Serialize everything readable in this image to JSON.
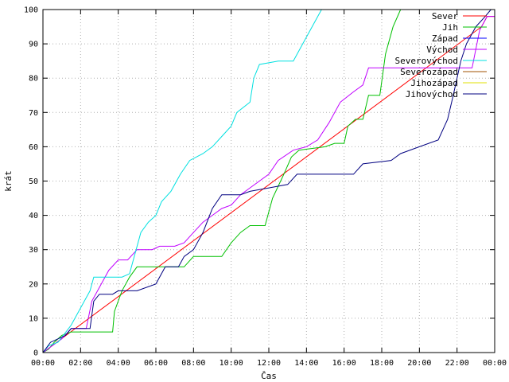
{
  "chart_data": {
    "type": "line",
    "xlabel": "Čas",
    "ylabel": "krát",
    "ylim": [
      0,
      100
    ],
    "xlim": [
      0,
      24
    ],
    "yticks": [
      0,
      10,
      20,
      30,
      40,
      50,
      60,
      70,
      80,
      90,
      100
    ],
    "xticks": [
      {
        "value": 0,
        "label": "00:00"
      },
      {
        "value": 2,
        "label": "02:00"
      },
      {
        "value": 4,
        "label": "04:00"
      },
      {
        "value": 6,
        "label": "06:00"
      },
      {
        "value": 8,
        "label": "08:00"
      },
      {
        "value": 10,
        "label": "10:00"
      },
      {
        "value": 12,
        "label": "12:00"
      },
      {
        "value": 14,
        "label": "14:00"
      },
      {
        "value": 16,
        "label": "16:00"
      },
      {
        "value": 18,
        "label": "18:00"
      },
      {
        "value": 20,
        "label": "20:00"
      },
      {
        "value": 22,
        "label": "22:00"
      },
      {
        "value": 24,
        "label": "00:00"
      }
    ],
    "grid": true,
    "legend_position": "top-right",
    "series": [
      {
        "name": "Sever",
        "color": "#ff0000",
        "points": [
          [
            0,
            0
          ],
          [
            23.3,
            95
          ],
          [
            23.6,
            98
          ],
          [
            24,
            98
          ]
        ]
      },
      {
        "name": "Jih",
        "color": "#00c000",
        "points": [
          [
            0,
            0
          ],
          [
            0.3,
            1
          ],
          [
            0.6,
            3
          ],
          [
            1.0,
            5
          ],
          [
            1.5,
            6
          ],
          [
            2.5,
            6
          ],
          [
            3.7,
            6
          ],
          [
            3.8,
            12
          ],
          [
            4.2,
            18
          ],
          [
            4.6,
            22
          ],
          [
            5.0,
            25
          ],
          [
            6.5,
            25
          ],
          [
            7.5,
            25
          ],
          [
            8.0,
            28
          ],
          [
            9.5,
            28
          ],
          [
            10.0,
            32
          ],
          [
            10.5,
            35
          ],
          [
            11.0,
            37
          ],
          [
            11.8,
            37
          ],
          [
            12.2,
            45
          ],
          [
            12.8,
            52
          ],
          [
            13.2,
            57
          ],
          [
            13.6,
            59
          ],
          [
            15.0,
            60
          ],
          [
            15.5,
            61
          ],
          [
            16.0,
            61
          ],
          [
            16.2,
            66
          ],
          [
            16.6,
            68
          ],
          [
            17.0,
            68
          ],
          [
            17.3,
            75
          ],
          [
            17.9,
            75
          ],
          [
            18.2,
            87
          ],
          [
            18.6,
            95
          ],
          [
            19.0,
            100
          ]
        ]
      },
      {
        "name": "Západ",
        "color": "#0000ff",
        "points": [
          [
            0,
            0
          ]
        ]
      },
      {
        "name": "Východ",
        "color": "#c000ff",
        "points": [
          [
            0,
            0
          ],
          [
            0.5,
            2
          ],
          [
            1.0,
            4
          ],
          [
            1.5,
            7
          ],
          [
            2.3,
            7
          ],
          [
            2.6,
            15
          ],
          [
            3.0,
            19
          ],
          [
            3.5,
            24
          ],
          [
            4.0,
            27
          ],
          [
            4.5,
            27
          ],
          [
            5.0,
            30
          ],
          [
            5.8,
            30
          ],
          [
            6.2,
            31
          ],
          [
            7.0,
            31
          ],
          [
            7.5,
            32
          ],
          [
            8.0,
            35
          ],
          [
            8.5,
            38
          ],
          [
            9.0,
            40
          ],
          [
            9.5,
            42
          ],
          [
            10.0,
            43
          ],
          [
            10.5,
            46
          ],
          [
            11.0,
            48
          ],
          [
            12.0,
            52
          ],
          [
            12.5,
            56
          ],
          [
            13.3,
            59
          ],
          [
            14.0,
            60
          ],
          [
            14.6,
            62
          ],
          [
            15.2,
            67
          ],
          [
            15.8,
            73
          ],
          [
            16.5,
            76
          ],
          [
            17.0,
            78
          ],
          [
            17.3,
            83
          ],
          [
            18.5,
            83
          ],
          [
            19.5,
            83
          ],
          [
            20.0,
            83
          ],
          [
            22.0,
            83
          ],
          [
            22.8,
            83
          ],
          [
            23.2,
            94
          ],
          [
            23.6,
            98
          ],
          [
            24,
            98
          ]
        ]
      },
      {
        "name": "Severovýchod",
        "color": "#00e0e0",
        "points": [
          [
            0,
            0
          ],
          [
            0.3,
            2
          ],
          [
            0.8,
            3
          ],
          [
            1.5,
            8
          ],
          [
            2.0,
            13
          ],
          [
            2.5,
            18
          ],
          [
            2.7,
            22
          ],
          [
            3.5,
            22
          ],
          [
            4.2,
            22
          ],
          [
            4.6,
            23
          ],
          [
            5.2,
            35
          ],
          [
            5.6,
            38
          ],
          [
            6.0,
            40
          ],
          [
            6.3,
            44
          ],
          [
            6.8,
            47
          ],
          [
            7.3,
            52
          ],
          [
            7.8,
            56
          ],
          [
            8.5,
            58
          ],
          [
            9.0,
            60
          ],
          [
            9.5,
            63
          ],
          [
            10.0,
            66
          ],
          [
            10.3,
            70
          ],
          [
            11.0,
            73
          ],
          [
            11.2,
            80
          ],
          [
            11.5,
            84
          ],
          [
            12.5,
            85
          ],
          [
            13.3,
            85
          ],
          [
            13.8,
            90
          ],
          [
            14.2,
            94
          ],
          [
            14.8,
            100
          ]
        ]
      },
      {
        "name": "Severozápad",
        "color": "#a05000",
        "points": [
          [
            0,
            0
          ]
        ]
      },
      {
        "name": "Jihozápad",
        "color": "#e0e000",
        "points": [
          [
            0,
            0
          ]
        ]
      },
      {
        "name": "Jihovýchod",
        "color": "#000080",
        "points": [
          [
            0,
            0
          ],
          [
            0.4,
            3
          ],
          [
            0.8,
            4
          ],
          [
            1.2,
            5
          ],
          [
            1.5,
            7
          ],
          [
            2.5,
            7
          ],
          [
            2.7,
            15
          ],
          [
            3.0,
            17
          ],
          [
            3.7,
            17
          ],
          [
            4.0,
            18
          ],
          [
            5.0,
            18
          ],
          [
            6.0,
            20
          ],
          [
            6.5,
            25
          ],
          [
            7.2,
            25
          ],
          [
            7.5,
            28
          ],
          [
            8.0,
            30
          ],
          [
            8.5,
            35
          ],
          [
            9.0,
            42
          ],
          [
            9.5,
            46
          ],
          [
            10.5,
            46
          ],
          [
            11.0,
            47
          ],
          [
            12.0,
            48
          ],
          [
            13.0,
            49
          ],
          [
            13.5,
            52
          ],
          [
            16.5,
            52
          ],
          [
            17.0,
            55
          ],
          [
            18.5,
            56
          ],
          [
            19.0,
            58
          ],
          [
            20.0,
            60
          ],
          [
            21.0,
            62
          ],
          [
            21.5,
            68
          ],
          [
            21.8,
            75
          ],
          [
            22.2,
            85
          ],
          [
            22.5,
            90
          ],
          [
            23.0,
            95
          ],
          [
            23.5,
            98
          ],
          [
            23.8,
            100
          ]
        ]
      }
    ]
  }
}
